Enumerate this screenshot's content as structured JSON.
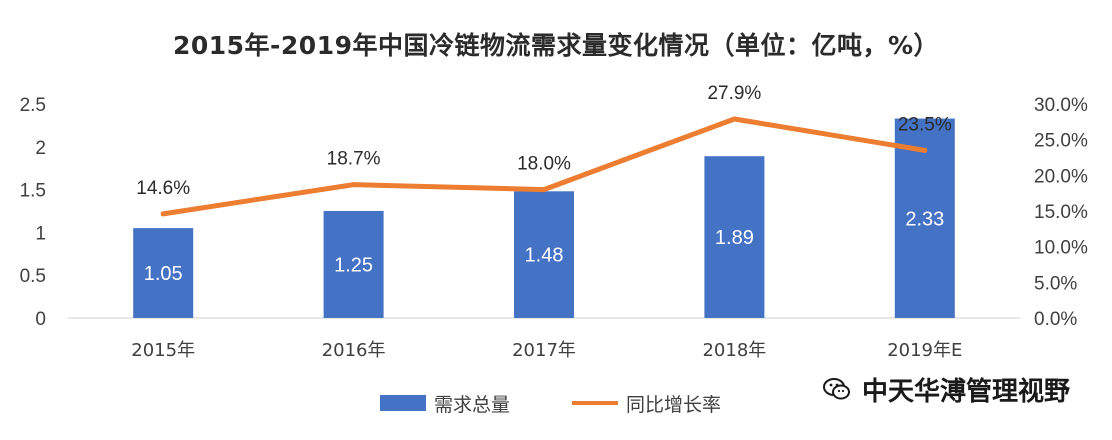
{
  "chart_data": {
    "type": "bar",
    "title": "2015年-2019年中国冷链物流需求量变化情况（单位：亿吨，%）",
    "categories": [
      "2015年",
      "2016年",
      "2017年",
      "2018年",
      "2019年E"
    ],
    "series": [
      {
        "name": "需求总量",
        "type": "bar",
        "axis": "left",
        "values": [
          1.05,
          1.25,
          1.48,
          1.89,
          2.33
        ],
        "labels": [
          "1.05",
          "1.25",
          "1.48",
          "1.89",
          "2.33"
        ],
        "color": "#4472c4"
      },
      {
        "name": "同比增长率",
        "type": "line",
        "axis": "right",
        "values": [
          14.6,
          18.7,
          18.0,
          27.9,
          23.5
        ],
        "labels": [
          "14.6%",
          "18.7%",
          "18.0%",
          "27.9%",
          "23.5%"
        ],
        "color": "#ed7d31"
      }
    ],
    "y_left": {
      "ylim": [
        0,
        2.5
      ],
      "ticks": [
        "0",
        "0.5",
        "1",
        "1.5",
        "2",
        "2.5"
      ]
    },
    "y_right": {
      "ylim": [
        0,
        30
      ],
      "ticks": [
        "0.0%",
        "5.0%",
        "10.0%",
        "15.0%",
        "20.0%",
        "25.0%",
        "30.0%"
      ]
    },
    "grid": false,
    "legend_position": "bottom"
  },
  "watermark": {
    "text": "中天华溥管理视野",
    "icon": "wechat-icon"
  }
}
